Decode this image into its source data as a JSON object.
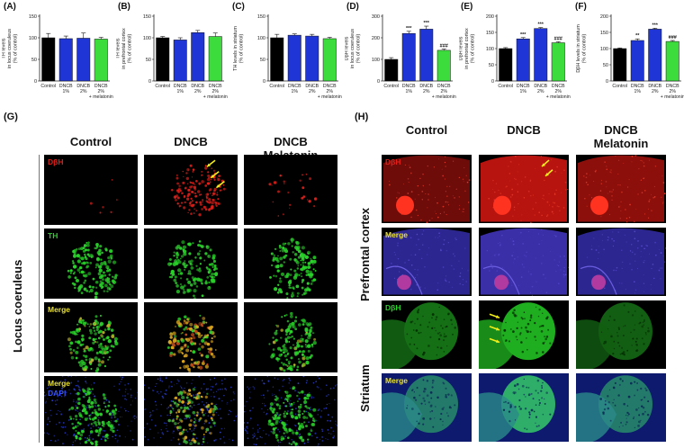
{
  "colors": {
    "control": "#000000",
    "dncb": "#1f35d6",
    "melatonin": "#3ddc3d",
    "dbh_red": "#e0201a",
    "th_green": "#2bd12b",
    "merge_yellow": "#e8e030",
    "dapi_blue": "#3a55ff",
    "arrow": "#f2ee1a"
  },
  "charts": [
    {
      "panel": "(A)",
      "chart_data": {
        "type": "bar",
        "ylabel": [
          "TH levels",
          "in locus coeruleus",
          "(% of control)"
        ],
        "categories": [
          [
            "Control"
          ],
          [
            "DNCB",
            "1%"
          ],
          [
            "DNCB",
            "2%"
          ],
          [
            "DNCB",
            "2%",
            "+ melatonin"
          ]
        ],
        "values": [
          100,
          98,
          99,
          97
        ],
        "errors": [
          10,
          6,
          12,
          4
        ],
        "ylim": [
          0,
          150
        ],
        "yticks": [
          "0",
          "50",
          "100",
          "150"
        ],
        "significance": [
          "",
          "",
          "",
          ""
        ]
      }
    },
    {
      "panel": "(B)",
      "chart_data": {
        "type": "bar",
        "ylabel": [
          "TH levels",
          "in prefrontal cortex",
          "(% of control)"
        ],
        "categories": [
          [
            "Control"
          ],
          [
            "DNCB",
            "1%"
          ],
          [
            "DNCB",
            "2%"
          ],
          [
            "DNCB",
            "2%",
            "+ melatonin"
          ]
        ],
        "values": [
          100,
          95,
          112,
          103
        ],
        "errors": [
          3,
          5,
          5,
          8
        ],
        "ylim": [
          0,
          150
        ],
        "yticks": [
          "0",
          "50",
          "100",
          "150"
        ],
        "significance": [
          "",
          "",
          "",
          ""
        ]
      }
    },
    {
      "panel": "(C)",
      "chart_data": {
        "type": "bar",
        "ylabel": [
          "TH levels in striatum",
          "(% of control)"
        ],
        "categories": [
          [
            "Control"
          ],
          [
            "DNCB",
            "1%"
          ],
          [
            "DNCB",
            "2%"
          ],
          [
            "DNCB",
            "2%",
            "+ melatonin"
          ]
        ],
        "values": [
          100,
          106,
          104,
          98
        ],
        "errors": [
          8,
          3,
          4,
          3
        ],
        "ylim": [
          0,
          150
        ],
        "yticks": [
          "0",
          "50",
          "100",
          "150"
        ],
        "significance": [
          "",
          "",
          "",
          ""
        ]
      }
    },
    {
      "panel": "(D)",
      "chart_data": {
        "type": "bar",
        "ylabel": [
          "DβH levels",
          "in locus coeruleus",
          "(% of control)"
        ],
        "categories": [
          [
            "Control"
          ],
          [
            "DNCB",
            "1%"
          ],
          [
            "DNCB",
            "2%"
          ],
          [
            "DNCB",
            "2%",
            "+ melatonin"
          ]
        ],
        "values": [
          100,
          220,
          240,
          142
        ],
        "errors": [
          8,
          10,
          14,
          6
        ],
        "ylim": [
          0,
          300
        ],
        "yticks": [
          "0",
          "100",
          "200",
          "300"
        ],
        "significance": [
          "",
          "***",
          "***",
          "###"
        ]
      }
    },
    {
      "panel": "(E)",
      "chart_data": {
        "type": "bar",
        "ylabel": [
          "DβH levels",
          "in prefrontal cortex",
          "(% of control)"
        ],
        "categories": [
          [
            "Control"
          ],
          [
            "DNCB",
            "1%"
          ],
          [
            "DNCB",
            "2%"
          ],
          [
            "DNCB",
            "2%",
            "+ melatonin"
          ]
        ],
        "values": [
          100,
          130,
          162,
          118
        ],
        "errors": [
          3,
          4,
          3,
          3
        ],
        "ylim": [
          0,
          200
        ],
        "yticks": [
          "0",
          "50",
          "100",
          "150",
          "200"
        ],
        "significance": [
          "",
          "***",
          "***",
          "###"
        ]
      }
    },
    {
      "panel": "(F)",
      "chart_data": {
        "type": "bar",
        "ylabel": [
          "DβH levels in striatum",
          "(% of control)"
        ],
        "categories": [
          [
            "Control"
          ],
          [
            "DNCB",
            "1%"
          ],
          [
            "DNCB",
            "2%"
          ],
          [
            "DNCB",
            "2%",
            "+ melatonin"
          ]
        ],
        "values": [
          100,
          125,
          160,
          122
        ],
        "errors": [
          2,
          5,
          3,
          3
        ],
        "ylim": [
          0,
          200
        ],
        "yticks": [
          "0",
          "50",
          "100",
          "150",
          "200"
        ],
        "significance": [
          "",
          "**",
          "***",
          "###"
        ]
      }
    }
  ],
  "panel_g": {
    "label": "(G)",
    "columns": [
      "Control",
      "DNCB",
      "DNCB\nMelatonin"
    ],
    "row_label": "Locus coeruleus",
    "rows": [
      {
        "labels": [
          "DβH"
        ],
        "label_colors": [
          "#e0201a"
        ],
        "stain": "dbh"
      },
      {
        "labels": [
          "TH"
        ],
        "label_colors": [
          "#2bd12b"
        ],
        "stain": "th"
      },
      {
        "labels": [
          "Merge"
        ],
        "label_colors": [
          "#e8e030"
        ],
        "stain": "merge"
      },
      {
        "labels": [
          "Merge",
          "DAPI"
        ],
        "label_colors": [
          "#e8e030",
          "#3a55ff"
        ],
        "stain": "dapi"
      }
    ]
  },
  "panel_h": {
    "label": "(H)",
    "columns": [
      "Control",
      "DNCB",
      "DNCB\nMelatonin"
    ],
    "row_labels": [
      "Prefrontal cortex",
      "Striatum"
    ],
    "rows": [
      {
        "labels": [
          "DβH"
        ],
        "label_colors": [
          "#e0201a"
        ],
        "stain": "pfc_red"
      },
      {
        "labels": [
          "Merge"
        ],
        "label_colors": [
          "#e8e030"
        ],
        "stain": "pfc_merge"
      },
      {
        "labels": [
          "DβH"
        ],
        "label_colors": [
          "#2bd12b"
        ],
        "stain": "str_green"
      },
      {
        "labels": [
          "Merge"
        ],
        "label_colors": [
          "#e8e030"
        ],
        "stain": "str_merge"
      }
    ]
  }
}
